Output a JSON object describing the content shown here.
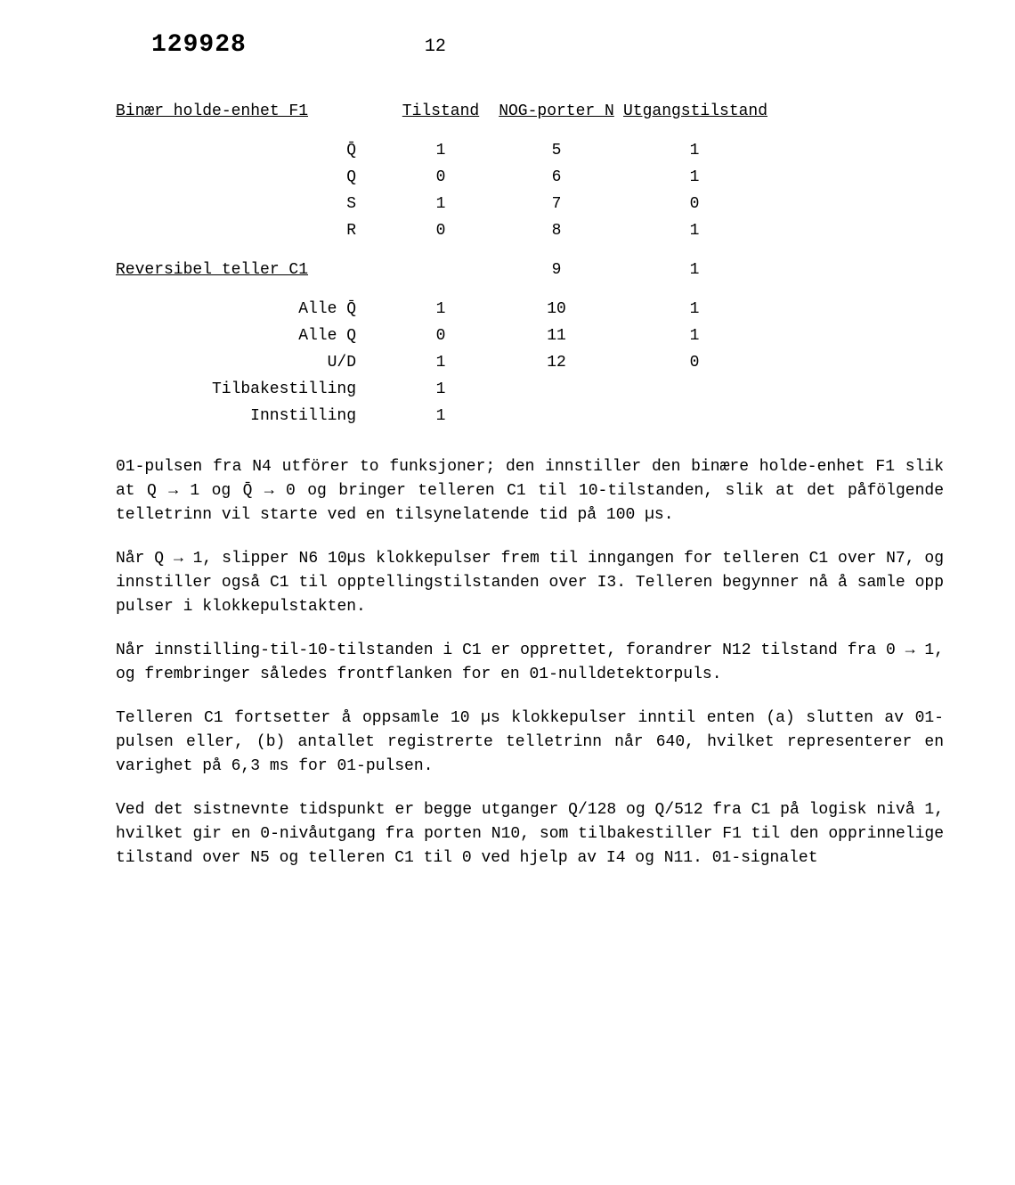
{
  "header": {
    "doc_number": "129928",
    "page_number": "12"
  },
  "table": {
    "headers": {
      "h1": "Binær holde-enhet F1",
      "h2": "Tilstand",
      "h3": "NOG-porter N",
      "h4": "Utgangstilstand"
    },
    "section1": [
      {
        "label": "Q̄",
        "tilstand": "1",
        "porter": "5",
        "utgang": "1"
      },
      {
        "label": "Q",
        "tilstand": "0",
        "porter": "6",
        "utgang": "1"
      },
      {
        "label": "S",
        "tilstand": "1",
        "porter": "7",
        "utgang": "0"
      },
      {
        "label": "R",
        "tilstand": "0",
        "porter": "8",
        "utgang": "1"
      }
    ],
    "section2_header": {
      "label": "Reversibel teller C1",
      "porter": "9",
      "utgang": "1"
    },
    "section2": [
      {
        "label": "Alle  Q̄",
        "tilstand": "1",
        "porter": "10",
        "utgang": "1"
      },
      {
        "label": "Alle  Q",
        "tilstand": "0",
        "porter": "11",
        "utgang": "1"
      },
      {
        "label": "U/D",
        "tilstand": "1",
        "porter": "12",
        "utgang": "0"
      },
      {
        "label": "Tilbakestilling",
        "tilstand": "1",
        "porter": "",
        "utgang": ""
      },
      {
        "label": "Innstilling",
        "tilstand": "1",
        "porter": "",
        "utgang": ""
      }
    ]
  },
  "paragraphs": {
    "p1": "01-pulsen fra N4 utförer to funksjoner; den innstiller den binære holde-enhet F1 slik at Q → 1 og Q̄ → 0 og bringer telleren C1 til 10-tilstanden, slik at det påfölgende telletrinn vil starte ved en tilsynelatende tid på 100 µs.",
    "p2": "Når Q → 1, slipper N6 10µs klokkepulser frem til inngangen for telleren C1 over N7, og innstiller også C1 til opptellingstilstanden over I3. Telleren begynner nå å samle opp pulser i klokkepulstakten.",
    "p3": "Når innstilling-til-10-tilstanden i C1 er opprettet, forandrer N12 tilstand fra 0 → 1, og frembringer således frontflanken for en 01-nulldetektorpuls.",
    "p4": "Telleren C1 fortsetter å oppsamle 10 µs klokkepulser inntil enten (a) slutten av 01-pulsen eller, (b) antallet registrerte telletrinn når 640, hvilket representerer en varighet på 6,3 ms for 01-pulsen.",
    "p5": "Ved det sistnevnte tidspunkt er begge utganger Q/128 og Q/512 fra C1 på logisk nivå 1, hvilket gir en 0-nivåutgang fra porten N10, som tilbakestiller F1 til den opprinnelige tilstand over N5 og telleren C1 til 0 ved hjelp av I4 og N11. 01-signalet"
  }
}
